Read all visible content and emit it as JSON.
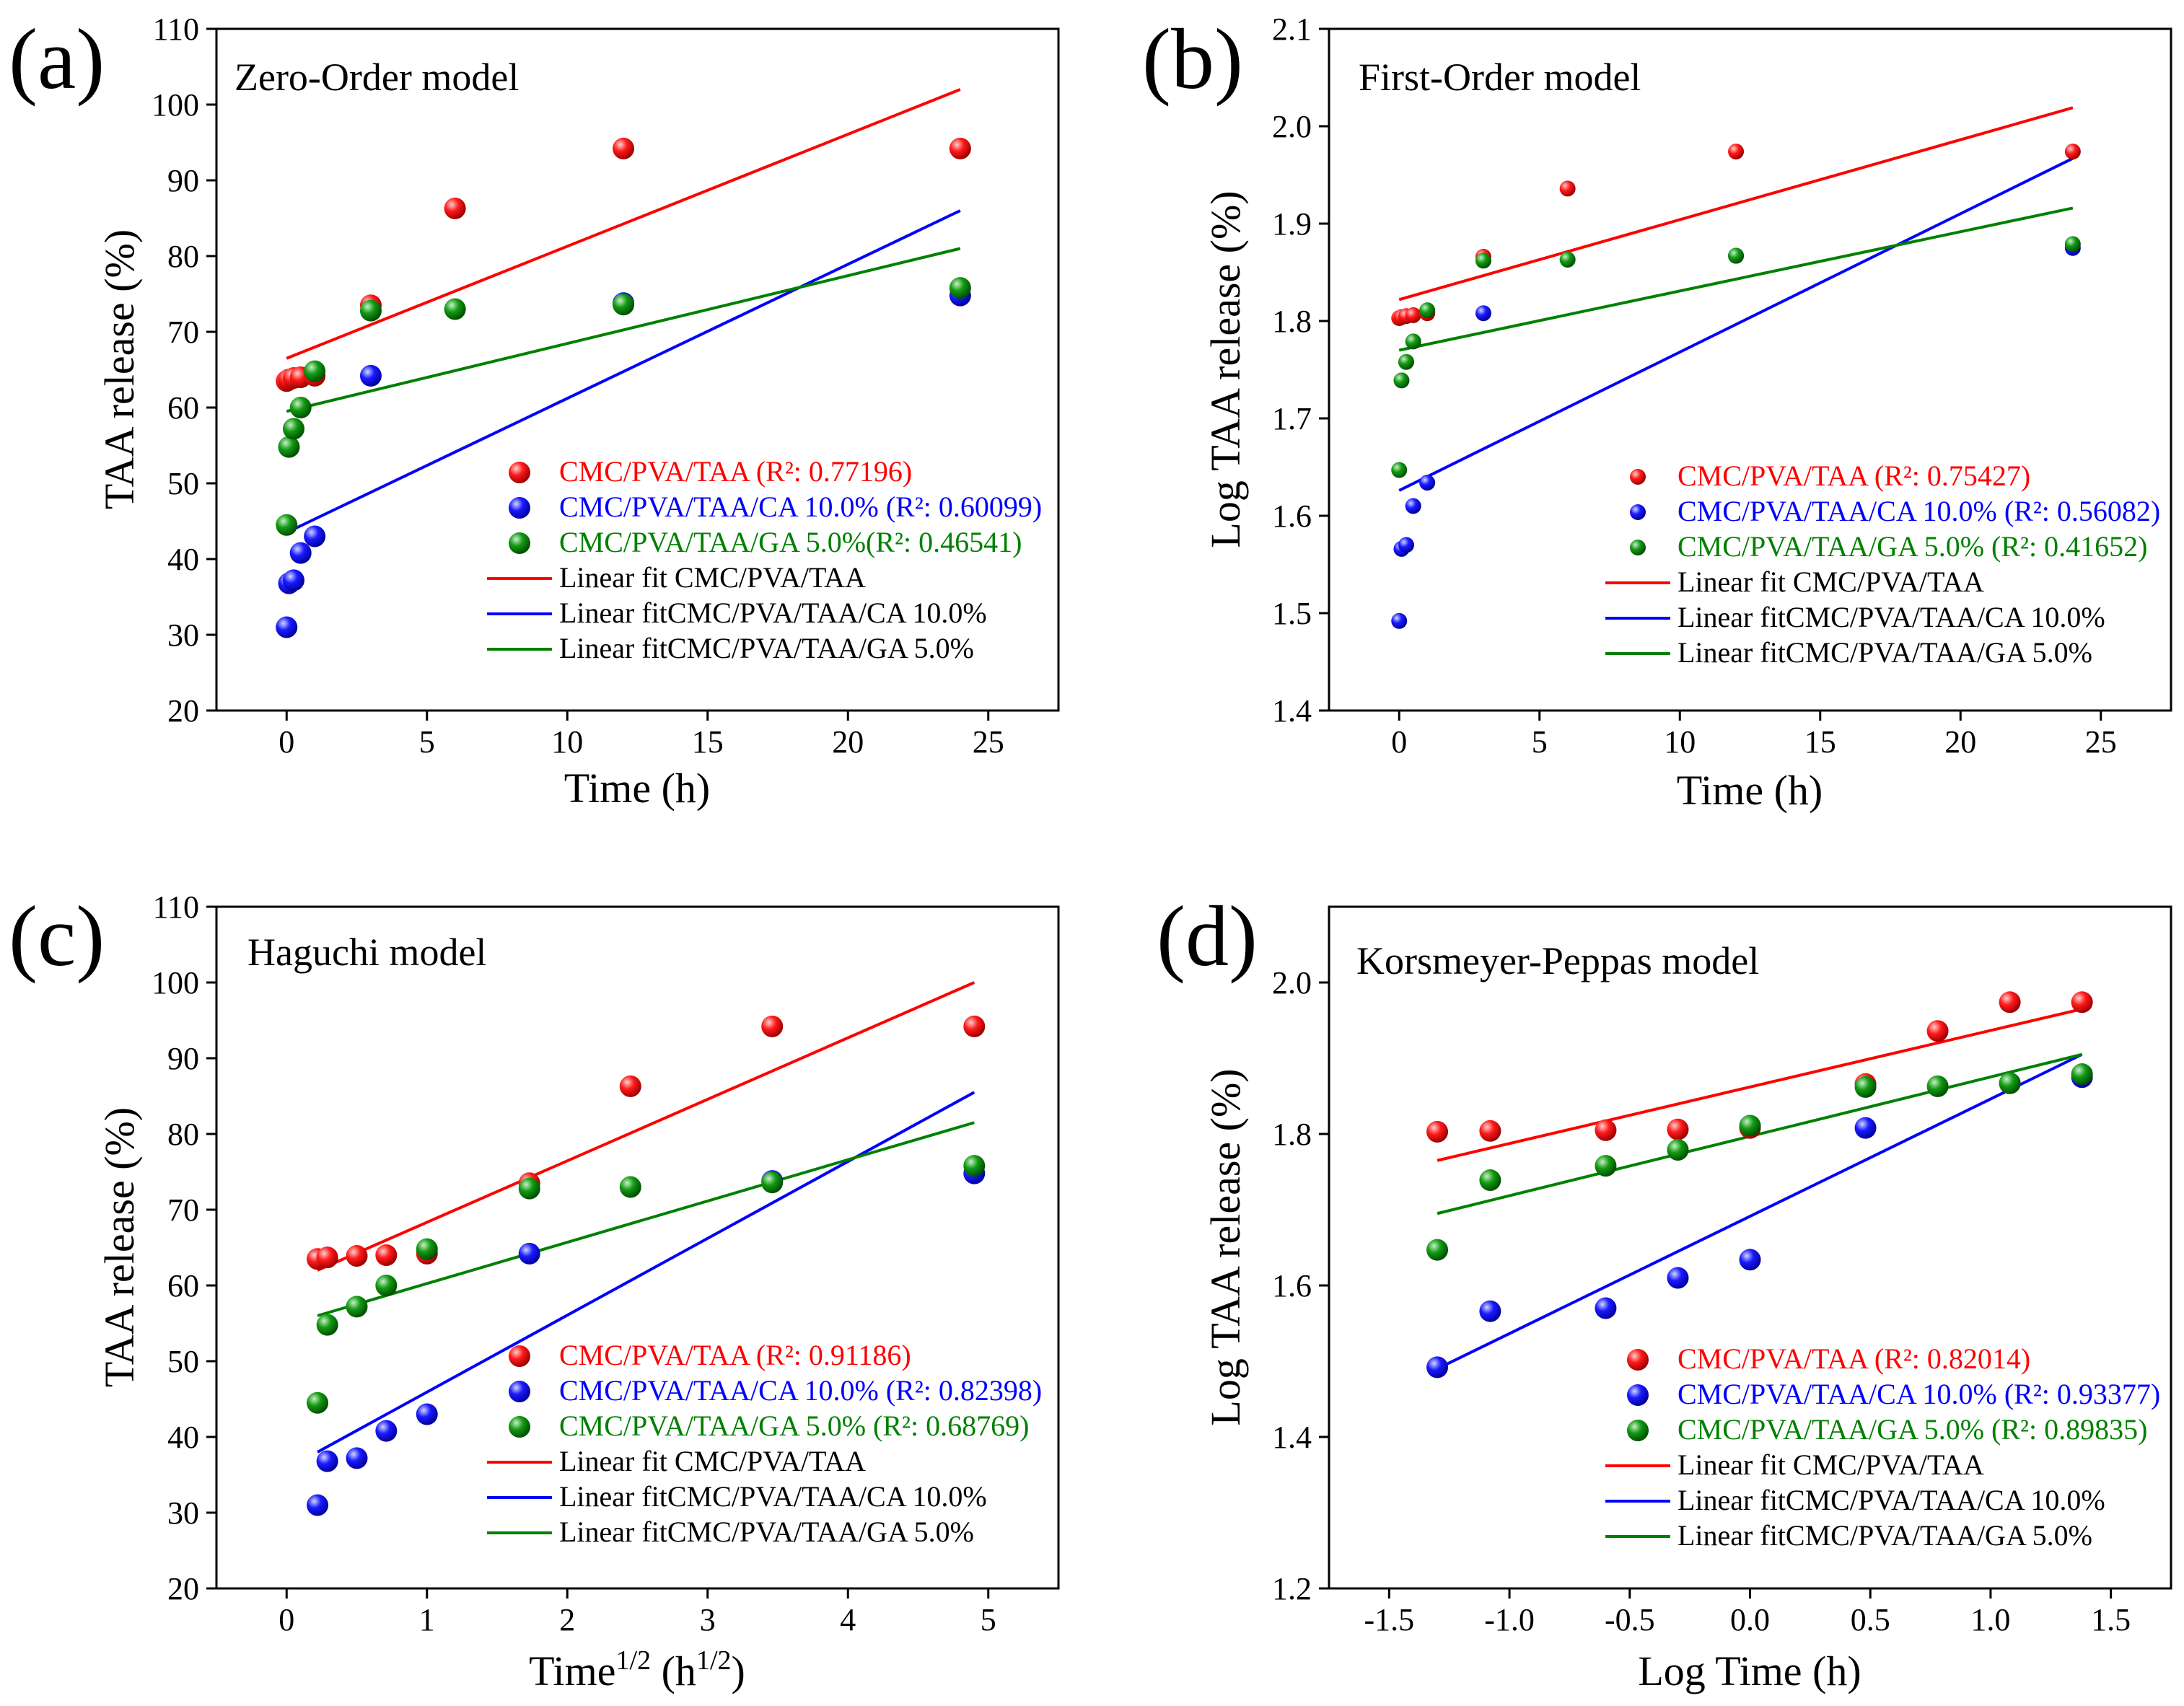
{
  "colors": {
    "red": "#ff0000",
    "blue": "#0000ff",
    "green": "#008000"
  },
  "chart_data": [
    {
      "id": "a",
      "type": "scatter",
      "panel_label": "(a)",
      "title": "Zero-Order model",
      "xlabel": "Time (h)",
      "ylabel": "TAA release (%)",
      "xlim": [
        -2.5,
        27.5
      ],
      "ylim": [
        20,
        110
      ],
      "xticks": [
        0,
        5,
        10,
        15,
        20,
        25
      ],
      "yticks": [
        20,
        30,
        40,
        50,
        60,
        70,
        80,
        90,
        100,
        110
      ],
      "xtick_labels": [
        "0",
        "5",
        "10",
        "15",
        "20",
        "25"
      ],
      "ytick_labels": [
        "20",
        "30",
        "40",
        "50",
        "60",
        "70",
        "80",
        "90",
        "100",
        "110"
      ],
      "series": [
        {
          "name": "CMC/PVA/TAA",
          "legend_label": "CMC/PVA/TAA (R²: 0.77196)",
          "color": "#ff0000",
          "x": [
            0,
            0.083,
            0.25,
            0.5,
            1,
            3,
            6,
            12,
            24
          ],
          "y": [
            63.5,
            63.7,
            63.9,
            64.0,
            64.2,
            73.5,
            86.3,
            94.2,
            94.2
          ],
          "fit_label": "Linear fit CMC/PVA/TAA",
          "fit": [
            [
              0,
              66.5
            ],
            [
              24,
              102
            ]
          ]
        },
        {
          "name": "CMC/PVA/TAA/CA 10.0%",
          "legend_label": "CMC/PVA/TAA/CA 10.0% (R²: 0.60099)",
          "color": "#0000ff",
          "x": [
            0,
            0.083,
            0.25,
            0.5,
            1,
            3,
            12,
            24
          ],
          "y": [
            31.0,
            36.8,
            37.2,
            40.8,
            43.0,
            64.2,
            73.8,
            74.8
          ],
          "fit_label": "Linear fitCMC/PVA/TAA/CA 10.0%",
          "fit": [
            [
              0,
              43.5
            ],
            [
              24,
              86
            ]
          ]
        },
        {
          "name": "CMC/PVA/TAA/GA 5.0%",
          "legend_label": "CMC/PVA/TAA/GA 5.0%(R²: 0.46541)",
          "color": "#008000",
          "x": [
            0,
            0.083,
            0.25,
            0.5,
            1,
            3,
            6,
            12,
            24
          ],
          "y": [
            44.5,
            54.8,
            57.2,
            60.0,
            64.8,
            72.8,
            73.0,
            73.6,
            75.8
          ],
          "fit_label": "Linear fitCMC/PVA/TAA/GA 5.0%",
          "fit": [
            [
              0,
              59.5
            ],
            [
              24,
              81
            ]
          ]
        }
      ]
    },
    {
      "id": "b",
      "type": "scatter",
      "panel_label": "(b)",
      "title": "First-Order model",
      "xlabel": "Time (h)",
      "ylabel": "Log TAA release (%)",
      "xlim": [
        -2.5,
        27.5
      ],
      "ylim": [
        1.4,
        2.1
      ],
      "xticks": [
        0,
        5,
        10,
        15,
        20,
        25
      ],
      "yticks": [
        1.4,
        1.5,
        1.6,
        1.7,
        1.8,
        1.9,
        2.0,
        2.1
      ],
      "xtick_labels": [
        "0",
        "5",
        "10",
        "15",
        "20",
        "25"
      ],
      "ytick_labels": [
        "1.4",
        "1.5",
        "1.6",
        "1.7",
        "1.8",
        "1.9",
        "2.0",
        "2.1"
      ],
      "series": [
        {
          "name": "CMC/PVA/TAA",
          "legend_label": "CMC/PVA/TAA (R²: 0.75427)",
          "color": "#ff0000",
          "x": [
            0,
            0.083,
            0.25,
            0.5,
            1,
            3,
            6,
            12,
            24
          ],
          "y": [
            1.803,
            1.804,
            1.805,
            1.806,
            1.808,
            1.866,
            1.936,
            1.974,
            1.974
          ],
          "fit_label": "Linear fit CMC/PVA/TAA",
          "fit": [
            [
              0,
              1.822
            ],
            [
              24,
              2.019
            ]
          ]
        },
        {
          "name": "CMC/PVA/TAA/CA 10.0%",
          "legend_label": "CMC/PVA/TAA/CA 10.0% (R²: 0.56082)",
          "color": "#0000ff",
          "x": [
            0,
            0.083,
            0.25,
            0.5,
            1,
            3,
            12,
            24
          ],
          "y": [
            1.492,
            1.566,
            1.57,
            1.61,
            1.634,
            1.808,
            1.867,
            1.875
          ],
          "fit_label": "Linear fitCMC/PVA/TAA/CA 10.0%",
          "fit": [
            [
              0,
              1.626
            ],
            [
              24,
              1.967
            ]
          ]
        },
        {
          "name": "CMC/PVA/TAA/GA 5.0%",
          "legend_label": "CMC/PVA/TAA/GA 5.0% (R²: 0.41652)",
          "color": "#008000",
          "x": [
            0,
            0.083,
            0.25,
            0.5,
            1,
            3,
            6,
            12,
            24
          ],
          "y": [
            1.647,
            1.739,
            1.758,
            1.779,
            1.811,
            1.862,
            1.863,
            1.867,
            1.879
          ],
          "fit_label": "Linear fitCMC/PVA/TAA/GA 5.0%",
          "fit": [
            [
              0,
              1.77
            ],
            [
              24,
              1.916
            ]
          ]
        }
      ]
    },
    {
      "id": "c",
      "type": "scatter",
      "panel_label": "(c)",
      "title": "Haguchi model",
      "xlabel_main": "Time",
      "xlabel_sup1": "1/2",
      "xlabel_mid": " (h",
      "xlabel_sup2": "1/2",
      "xlabel_end": ")",
      "ylabel": "TAA release (%)",
      "xlim": [
        -0.5,
        5.5
      ],
      "ylim": [
        20,
        110
      ],
      "xticks": [
        0,
        1,
        2,
        3,
        4,
        5
      ],
      "yticks": [
        20,
        30,
        40,
        50,
        60,
        70,
        80,
        90,
        100,
        110
      ],
      "xtick_labels": [
        "0",
        "1",
        "2",
        "3",
        "4",
        "5"
      ],
      "ytick_labels": [
        "20",
        "30",
        "40",
        "50",
        "60",
        "70",
        "80",
        "90",
        "100",
        "110"
      ],
      "series": [
        {
          "name": "CMC/PVA/TAA",
          "legend_label": "CMC/PVA/TAA (R²: 0.91186)",
          "color": "#ff0000",
          "x": [
            0.22,
            0.29,
            0.5,
            0.71,
            1.0,
            1.73,
            2.45,
            3.46,
            4.9
          ],
          "y": [
            63.5,
            63.7,
            63.9,
            64.0,
            64.2,
            73.5,
            86.3,
            94.2,
            94.2
          ],
          "fit_label": "Linear fit CMC/PVA/TAA",
          "fit": [
            [
              0.22,
              62
            ],
            [
              4.9,
              100
            ]
          ]
        },
        {
          "name": "CMC/PVA/TAA/CA 10.0%",
          "legend_label": "CMC/PVA/TAA/CA 10.0% (R²: 0.82398)",
          "color": "#0000ff",
          "x": [
            0.22,
            0.29,
            0.5,
            0.71,
            1.0,
            1.73,
            3.46,
            4.9
          ],
          "y": [
            31.0,
            36.8,
            37.2,
            40.8,
            43.0,
            64.2,
            73.8,
            74.8
          ],
          "fit_label": "Linear fitCMC/PVA/TAA/CA 10.0%",
          "fit": [
            [
              0.22,
              38
            ],
            [
              4.9,
              85.5
            ]
          ]
        },
        {
          "name": "CMC/PVA/TAA/GA 5.0%",
          "legend_label": "CMC/PVA/TAA/GA 5.0% (R²: 0.68769)",
          "color": "#008000",
          "x": [
            0.22,
            0.29,
            0.5,
            0.71,
            1.0,
            1.73,
            2.45,
            3.46,
            4.9
          ],
          "y": [
            44.5,
            54.8,
            57.2,
            60.0,
            64.8,
            72.8,
            73.0,
            73.6,
            75.8
          ],
          "fit_label": "Linear fitCMC/PVA/TAA/GA 5.0%",
          "fit": [
            [
              0.22,
              56
            ],
            [
              4.9,
              81.5
            ]
          ]
        }
      ]
    },
    {
      "id": "d",
      "type": "scatter",
      "panel_label": "(d)",
      "title": "Korsmeyer-Peppas model",
      "xlabel": "Log Time (h)",
      "ylabel": "Log TAA release (%)",
      "xlim": [
        -1.75,
        1.75
      ],
      "ylim": [
        1.2,
        2.1
      ],
      "xticks": [
        -1.5,
        -1.0,
        -0.5,
        0.0,
        0.5,
        1.0,
        1.5
      ],
      "yticks": [
        1.2,
        1.4,
        1.6,
        1.8,
        2.0
      ],
      "xtick_labels": [
        "-1.5",
        "-1.0",
        "-0.5",
        "0.0",
        "0.5",
        "1.0",
        "1.5"
      ],
      "ytick_labels": [
        "1.2",
        "1.4",
        "1.6",
        "1.8",
        "2.0"
      ],
      "series": [
        {
          "name": "CMC/PVA/TAA",
          "legend_label": "CMC/PVA/TAA (R²: 0.82014)",
          "color": "#ff0000",
          "x": [
            -1.3,
            -1.08,
            -0.6,
            -0.3,
            0.0,
            0.48,
            0.78,
            1.08,
            1.38
          ],
          "y": [
            1.803,
            1.804,
            1.805,
            1.806,
            1.808,
            1.866,
            1.936,
            1.974,
            1.974
          ],
          "fit_label": "Linear fit CMC/PVA/TAA",
          "fit": [
            [
              -1.3,
              1.765
            ],
            [
              1.38,
              1.965
            ]
          ]
        },
        {
          "name": "CMC/PVA/TAA/CA 10.0%",
          "legend_label": "CMC/PVA/TAA/CA 10.0% (R²: 0.93377)",
          "color": "#0000ff",
          "x": [
            -1.3,
            -1.08,
            -0.6,
            -0.3,
            0.0,
            0.48,
            1.08,
            1.38
          ],
          "y": [
            1.492,
            1.566,
            1.57,
            1.61,
            1.634,
            1.808,
            1.867,
            1.875
          ],
          "fit_label": "Linear fitCMC/PVA/TAA/CA 10.0%",
          "fit": [
            [
              -1.3,
              1.49
            ],
            [
              1.38,
              1.905
            ]
          ]
        },
        {
          "name": "CMC/PVA/TAA/GA 5.0%",
          "legend_label": "CMC/PVA/TAA/GA 5.0% (R²: 0.89835)",
          "color": "#008000",
          "x": [
            -1.3,
            -1.08,
            -0.6,
            -0.3,
            0.0,
            0.48,
            0.78,
            1.08,
            1.38
          ],
          "y": [
            1.647,
            1.739,
            1.758,
            1.779,
            1.811,
            1.862,
            1.863,
            1.867,
            1.879
          ],
          "fit_label": "Linear fitCMC/PVA/TAA/GA 5.0%",
          "fit": [
            [
              -1.3,
              1.695
            ],
            [
              1.38,
              1.905
            ]
          ]
        }
      ]
    }
  ]
}
